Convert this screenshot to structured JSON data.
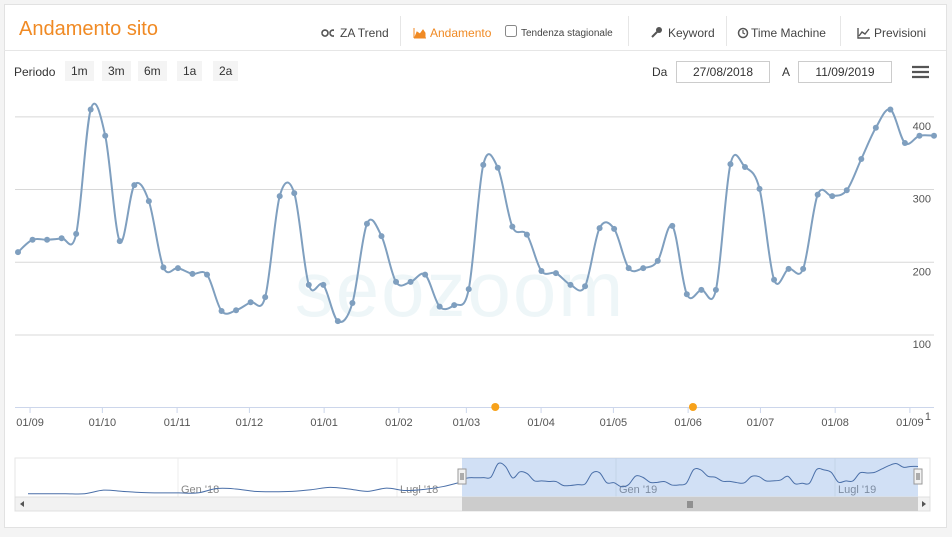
{
  "header": {
    "title": "Andamento sito",
    "tabs": [
      "ZA Trend",
      "Andamento",
      "Tendenza stagionale",
      "Keyword",
      "Time Machine",
      "Previsioni"
    ]
  },
  "range_selector": {
    "label": "Periodo",
    "buttons": [
      "1m",
      "3m",
      "6m",
      "1a",
      "2a"
    ],
    "from_label": "Da",
    "from": "27/08/2018",
    "to_label": "A",
    "to": "11/09/2019"
  },
  "watermark": "seozoom",
  "chart_data": {
    "type": "line",
    "color": "#7f9fbf",
    "xlim": [
      "2018-08-27",
      "2019-09-11"
    ],
    "xticks": [
      {
        "value": "2018-09-01",
        "label": "01/09"
      },
      {
        "value": "2018-10-01",
        "label": "01/10"
      },
      {
        "value": "2018-11-01",
        "label": "01/11"
      },
      {
        "value": "2018-12-01",
        "label": "01/12"
      },
      {
        "value": "2019-01-01",
        "label": "01/01"
      },
      {
        "value": "2019-02-01",
        "label": "01/02"
      },
      {
        "value": "2019-03-01",
        "label": "01/03"
      },
      {
        "value": "2019-04-01",
        "label": "01/04"
      },
      {
        "value": "2019-05-01",
        "label": "01/05"
      },
      {
        "value": "2019-06-01",
        "label": "01/06"
      },
      {
        "value": "2019-07-01",
        "label": "01/07"
      },
      {
        "value": "2019-08-01",
        "label": "01/08"
      },
      {
        "value": "2019-09-01",
        "label": "01/09"
      }
    ],
    "ylim": [
      1,
      430
    ],
    "yticks": [
      1,
      100,
      200,
      300,
      400
    ],
    "grid": true,
    "values": [
      214,
      231,
      231,
      233,
      239,
      410,
      374,
      229,
      306,
      284,
      193,
      192,
      184,
      183,
      133,
      134,
      145,
      152,
      291,
      295,
      169,
      169,
      119,
      144,
      253,
      236,
      173,
      173,
      183,
      139,
      141,
      163,
      334,
      330,
      249,
      238,
      188,
      185,
      169,
      167,
      247,
      246,
      192,
      192,
      202,
      250,
      156,
      162,
      162,
      335,
      331,
      301,
      176,
      191,
      191,
      293,
      291,
      299,
      342,
      385,
      410,
      364,
      374,
      374
    ],
    "flags": [
      "2019-03-13",
      "2019-06-03"
    ],
    "flag_color": "#f7a21b"
  },
  "navigator": {
    "ticks": [
      "Gen '18",
      "Lugl '18",
      "Gen '19",
      "Lugl '19"
    ],
    "values": [
      30,
      30,
      30,
      30,
      75,
      60,
      45,
      40,
      40,
      40,
      95,
      90,
      60,
      55,
      60,
      80,
      110,
      90,
      60,
      100,
      70,
      85,
      120,
      180
    ]
  }
}
